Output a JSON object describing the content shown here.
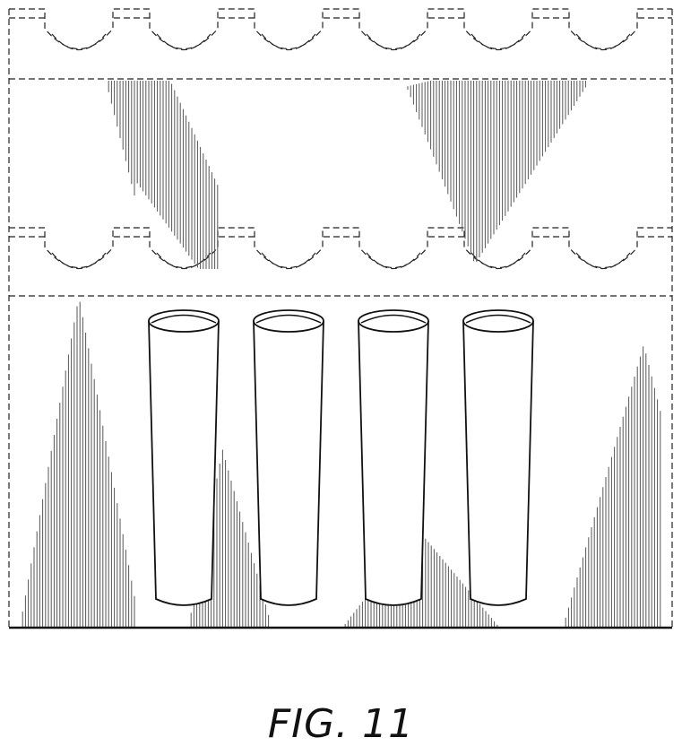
{
  "figure": {
    "caption": "FIG. 11",
    "colors": {
      "line": "#111111",
      "hatch": "#555555",
      "background": "#ffffff"
    },
    "cups_row_count": 4,
    "tray_rows": 2,
    "notches_per_row": 6
  }
}
